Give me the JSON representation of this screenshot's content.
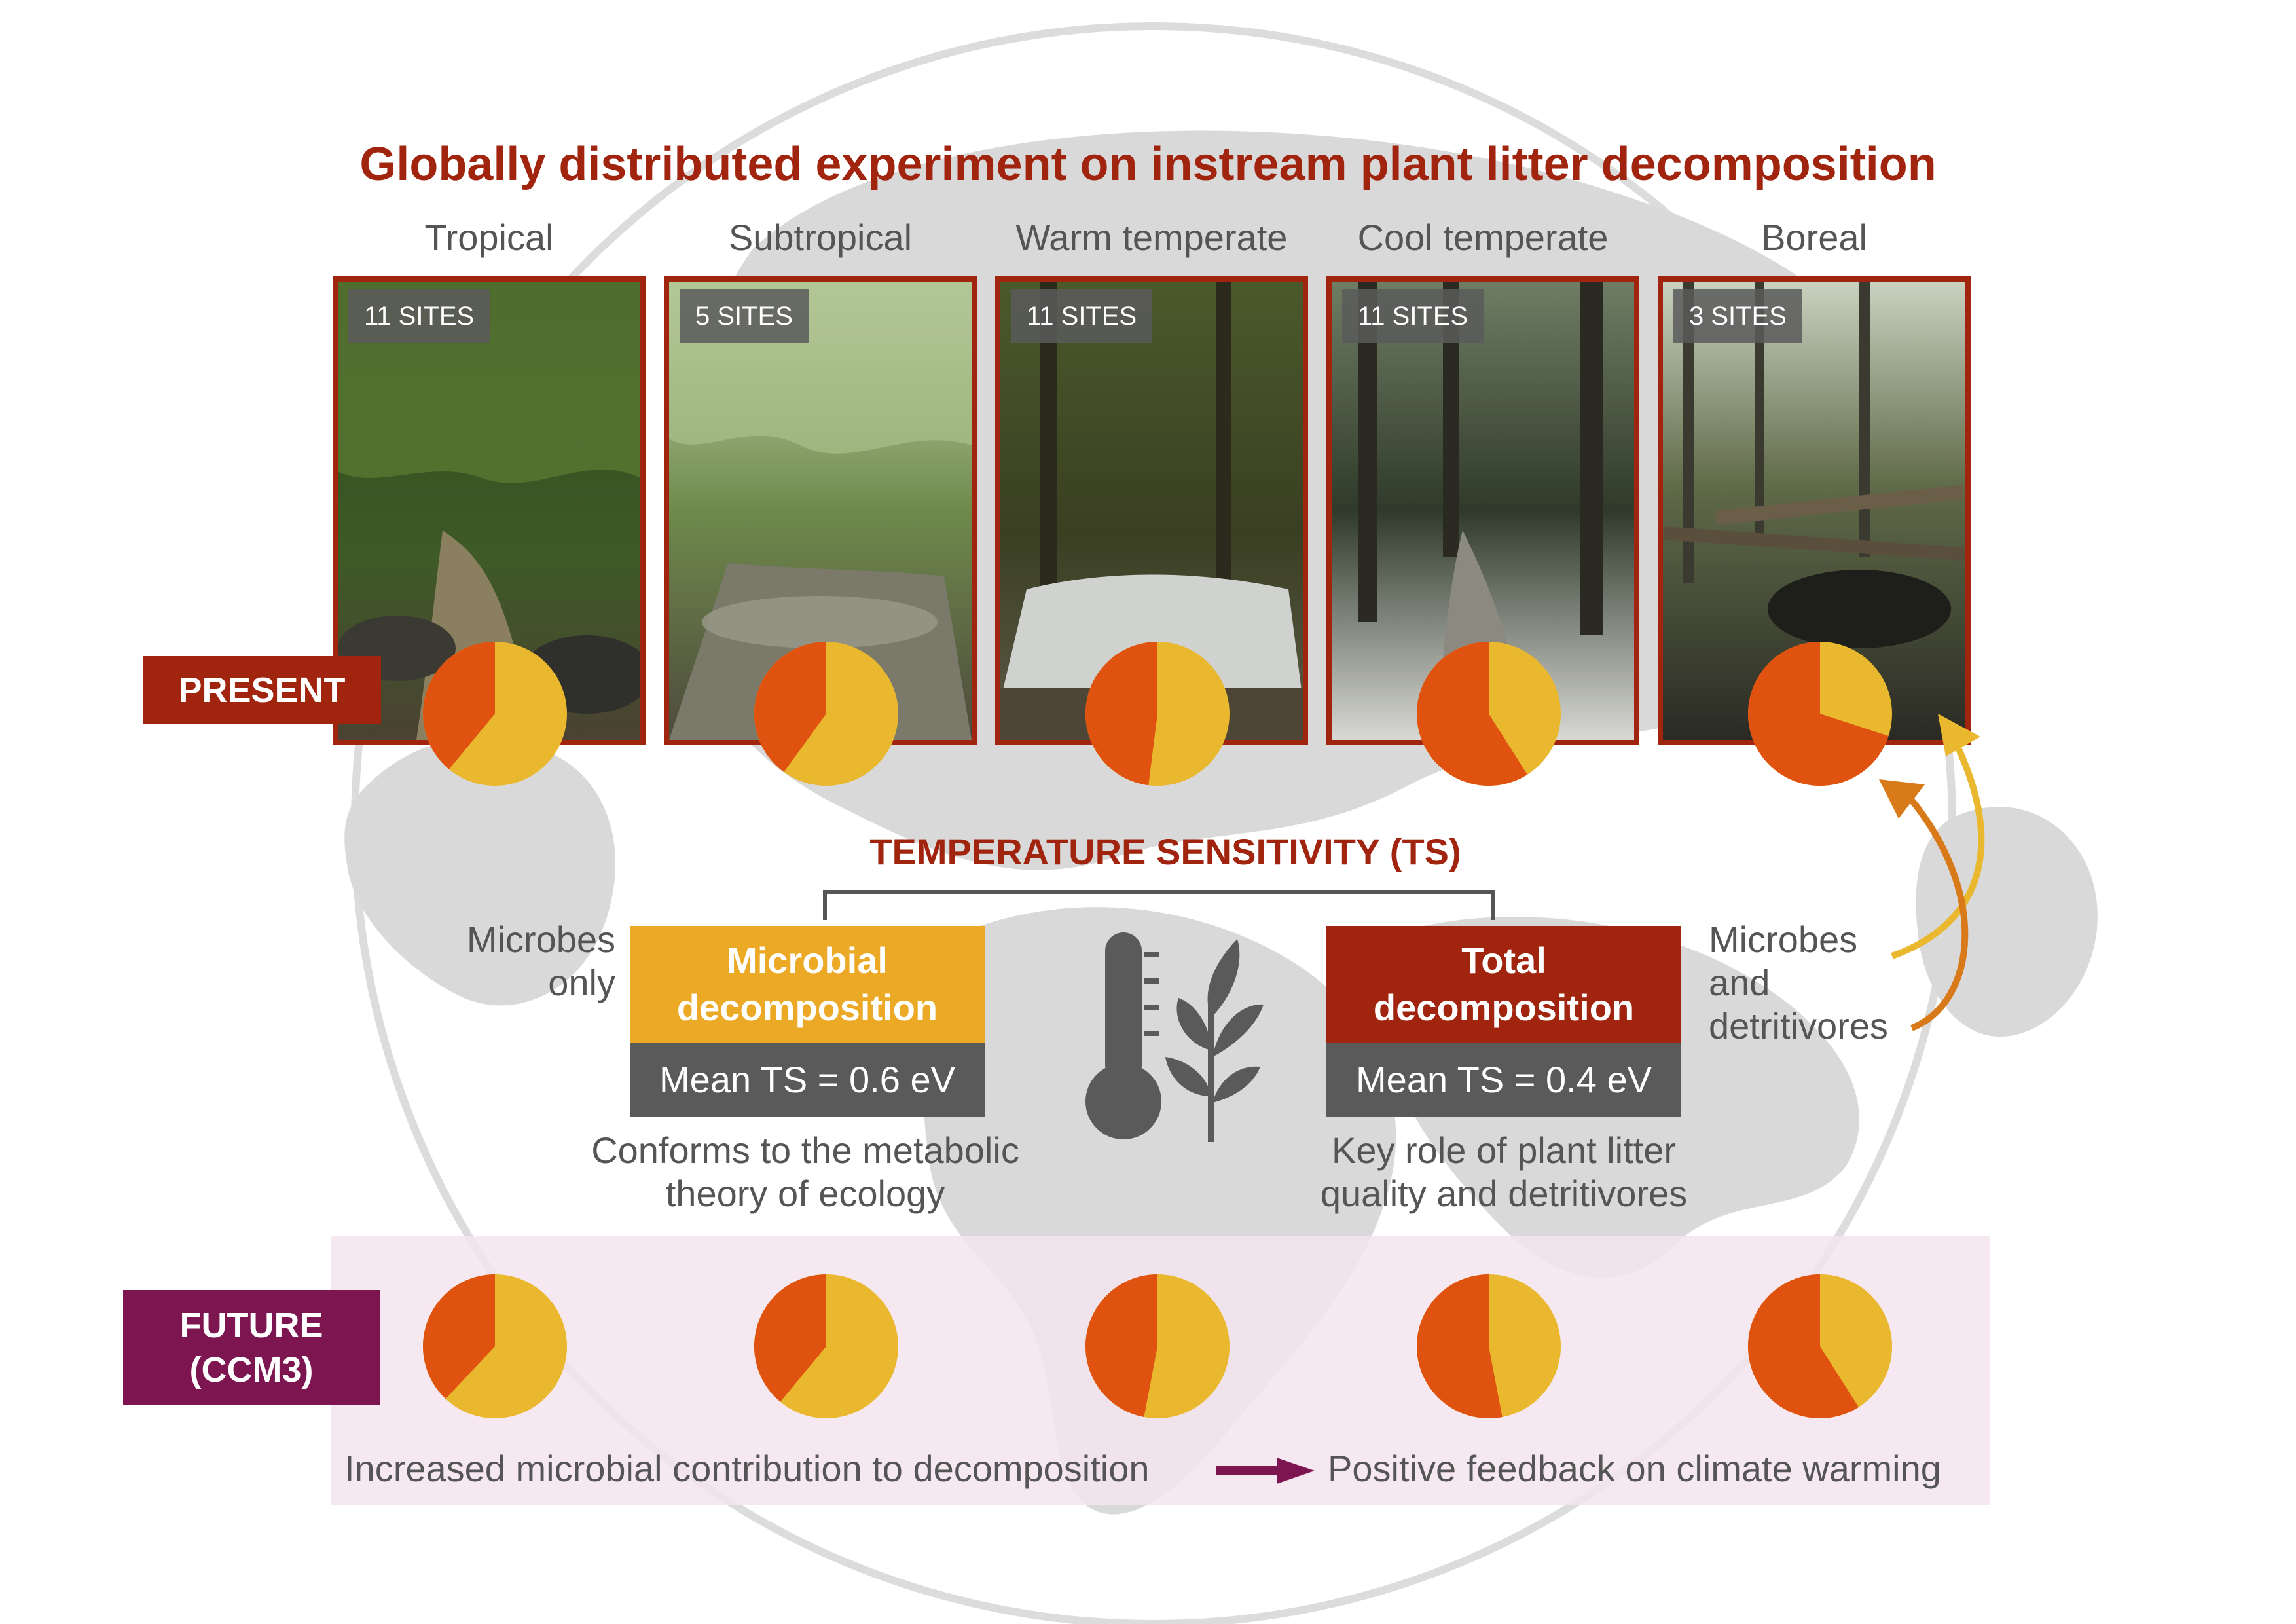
{
  "title": "Globally distributed experiment on instream plant litter decomposition",
  "biomes": [
    {
      "name": "Tropical",
      "sites": "11 SITES",
      "present_share": 0.39,
      "future_share": 0.38
    },
    {
      "name": "Subtropical",
      "sites": "5 SITES",
      "present_share": 0.4,
      "future_share": 0.39
    },
    {
      "name": "Warm temperate",
      "sites": "11 SITES",
      "present_share": 0.48,
      "future_share": 0.47
    },
    {
      "name": "Cool temperate",
      "sites": "11 SITES",
      "present_share": 0.59,
      "future_share": 0.53
    },
    {
      "name": "Boreal",
      "sites": "3 SITES",
      "present_share": 0.7,
      "future_share": 0.59
    }
  ],
  "present_label": "PRESENT",
  "future_label_line1": "FUTURE",
  "future_label_line2": "(CCM3)",
  "ts_title": "TEMPERATURE SENSITIVITY (TS)",
  "microbes_only_line1": "Microbes",
  "microbes_only_line2": "only",
  "microbial_box": {
    "line1": "Microbial",
    "line2": "decomposition",
    "mean": "Mean TS = 0.6 eV",
    "caption_line1": "Conforms to the metabolic",
    "caption_line2": "theory of ecology"
  },
  "total_box": {
    "line1": "Total",
    "line2": "decomposition",
    "mean": "Mean TS = 0.4 eV",
    "caption_line1": "Key role of plant litter",
    "caption_line2": "quality and detritivores"
  },
  "microbes_detritivores_line1": "Microbes",
  "microbes_detritivores_line2": "and",
  "microbes_detritivores_line3": "detritivores",
  "bottom_left": "Increased microbial contribution to decomposition",
  "bottom_right": "Positive feedback on climate warming",
  "colors": {
    "title_red": "#a0240e",
    "future_purple": "#7d1650",
    "microbial_yellow": "#eba925",
    "pie_yellow": "#e9b82e",
    "pie_orange": "#e0520f",
    "text_gray": "#555555",
    "globe_gray": "#d9d9d9"
  }
}
